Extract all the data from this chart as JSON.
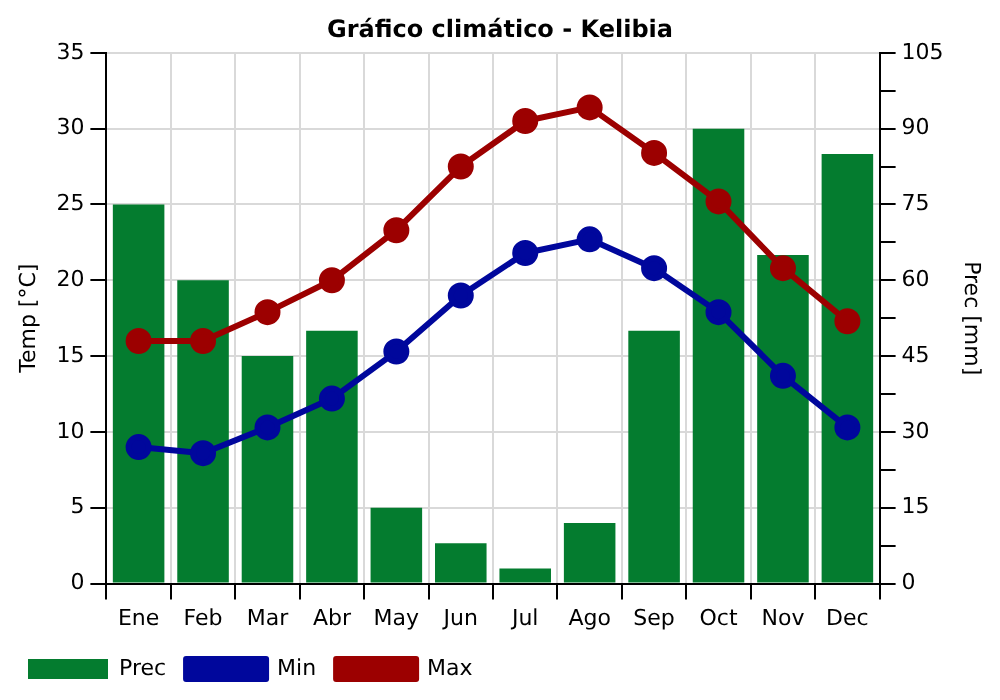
{
  "chart_data": {
    "type": "bar",
    "title": "Gráfico climático - Kelibia",
    "ylabel": "Temp [°C]",
    "y2label": "Prec [mm]",
    "categories": [
      "Ene",
      "Feb",
      "Mar",
      "Abr",
      "May",
      "Jun",
      "Jul",
      "Ago",
      "Sep",
      "Oct",
      "Nov",
      "Dec"
    ],
    "series": [
      {
        "name": "Prec",
        "axis": "y2",
        "color": "#047c2f",
        "values": [
          75,
          60,
          45,
          50,
          15,
          8,
          3,
          12,
          50,
          90,
          65,
          85
        ]
      },
      {
        "name": "Min",
        "type": "line",
        "color": "#00079c",
        "values": [
          9.0,
          8.6,
          10.3,
          12.2,
          15.3,
          19.0,
          21.8,
          22.7,
          20.8,
          17.9,
          13.7,
          10.3
        ]
      },
      {
        "name": "Max",
        "type": "line",
        "color": "#9c0000",
        "values": [
          16.0,
          16.0,
          17.9,
          20.0,
          23.3,
          27.5,
          30.5,
          31.4,
          28.4,
          25.2,
          20.8,
          17.3
        ]
      }
    ],
    "ylim": [
      0,
      35
    ],
    "yticks": [
      0,
      5,
      10,
      15,
      20,
      25,
      30,
      35
    ],
    "y2lim": [
      0,
      105
    ],
    "y2ticks": [
      0,
      {
        "value": 7.5,
        "label": null
      },
      15,
      {
        "value": 22.5,
        "label": null
      },
      30,
      {
        "value": 37.5,
        "label": null
      },
      45,
      {
        "value": 52.5,
        "label": null
      },
      60,
      {
        "value": 67.5,
        "label": null
      },
      75,
      {
        "value": 82.5,
        "label": null
      },
      90,
      {
        "value": 97.5,
        "label": null
      },
      105
    ],
    "grid": true,
    "legend": "bottom left",
    "marker": "circle",
    "line_style": "solid"
  }
}
